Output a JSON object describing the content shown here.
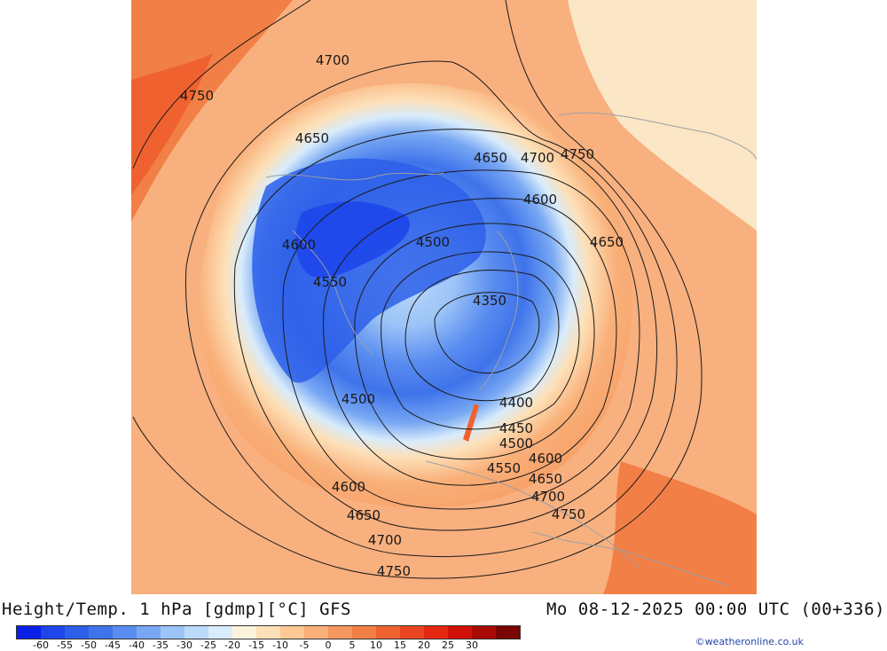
{
  "title": "Height/Temp. 1 hPa [gdmp][°C] GFS",
  "timestamp": "Mo 08-12-2025 00:00 UTC (00+336)",
  "credit": "©weatheronline.co.uk",
  "colorbar": {
    "colors": [
      "#0a1ee8",
      "#1e46eb",
      "#2d5fe9",
      "#3f73ea",
      "#5a8df0",
      "#78a8f3",
      "#9cc4f7",
      "#bcdaf9",
      "#d9ecfb",
      "#fbf3dc",
      "#fde0b7",
      "#fcc995",
      "#f9b079",
      "#f5985f",
      "#f27f45",
      "#ef6230",
      "#ea4520",
      "#e52812",
      "#d21108",
      "#a80a05",
      "#7a0502"
    ],
    "labels": [
      "-60",
      "-55",
      "-50",
      "-45",
      "-40",
      "-35",
      "-30",
      "-25",
      "-20",
      "-15",
      "-10",
      "-5",
      "0",
      "5",
      "10",
      "15",
      "20",
      "25",
      "30"
    ]
  },
  "contour_labels": [
    {
      "text": "4700",
      "pos": [
        375,
        68
      ]
    },
    {
      "text": "4750",
      "pos": [
        222,
        108
      ]
    },
    {
      "text": "4650",
      "pos": [
        352,
        156
      ]
    },
    {
      "text": "4650",
      "pos": [
        553,
        178
      ]
    },
    {
      "text": "4700",
      "pos": [
        606,
        178
      ]
    },
    {
      "text": "4750",
      "pos": [
        651,
        174
      ]
    },
    {
      "text": "4600",
      "pos": [
        609,
        225
      ]
    },
    {
      "text": "4500",
      "pos": [
        488,
        273
      ]
    },
    {
      "text": "4650",
      "pos": [
        684,
        273
      ]
    },
    {
      "text": "4600",
      "pos": [
        337,
        276
      ]
    },
    {
      "text": "4550",
      "pos": [
        372,
        318
      ]
    },
    {
      "text": "4350",
      "pos": [
        552,
        339
      ]
    },
    {
      "text": "4500",
      "pos": [
        404,
        450
      ]
    },
    {
      "text": "4400",
      "pos": [
        582,
        454
      ]
    },
    {
      "text": "4450",
      "pos": [
        582,
        483
      ]
    },
    {
      "text": "4500",
      "pos": [
        582,
        500
      ]
    },
    {
      "text": "4600",
      "pos": [
        615,
        517
      ]
    },
    {
      "text": "4550",
      "pos": [
        568,
        528
      ]
    },
    {
      "text": "4650",
      "pos": [
        615,
        540
      ]
    },
    {
      "text": "4600",
      "pos": [
        393,
        549
      ]
    },
    {
      "text": "4700",
      "pos": [
        618,
        560
      ]
    },
    {
      "text": "4650",
      "pos": [
        410,
        581
      ]
    },
    {
      "text": "4750",
      "pos": [
        641,
        580
      ]
    },
    {
      "text": "4700",
      "pos": [
        434,
        609
      ]
    },
    {
      "text": "4750",
      "pos": [
        444,
        644
      ]
    }
  ]
}
